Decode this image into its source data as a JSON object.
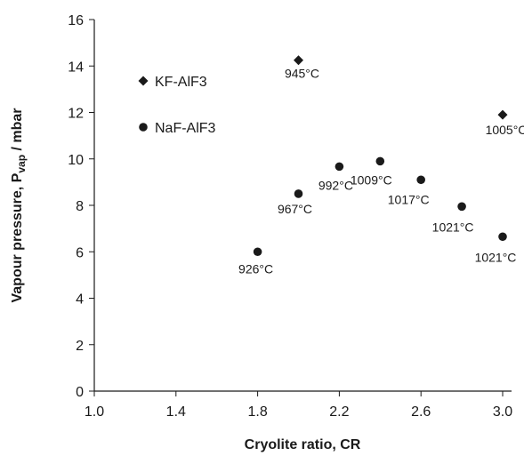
{
  "chart_data": {
    "type": "scatter",
    "title": "",
    "xlabel": "Cryolite ratio, CR",
    "ylabel": {
      "main": "Vapour pressure, P",
      "sub": "vap",
      "unit": " / mbar"
    },
    "xlim": [
      1.0,
      3.0
    ],
    "ylim": [
      0,
      16
    ],
    "xticks": [
      "1.0",
      "1.4",
      "1.8",
      "2.2",
      "2.6",
      "3.0"
    ],
    "yticks": [
      "0",
      "2",
      "4",
      "6",
      "8",
      "10",
      "12",
      "14",
      "16"
    ],
    "grid": false,
    "legend_position": "top-left",
    "series": [
      {
        "name": "KF-AlF3",
        "marker": "diamond",
        "color": "#1a1a1a",
        "points": [
          {
            "x": 2.0,
            "y": 14.25,
            "label": "945°C"
          },
          {
            "x": 3.0,
            "y": 11.9,
            "label": "1005°C"
          }
        ]
      },
      {
        "name": "NaF-AlF3",
        "marker": "circle",
        "color": "#1a1a1a",
        "points": [
          {
            "x": 1.8,
            "y": 6.0,
            "label": "926°C"
          },
          {
            "x": 2.0,
            "y": 8.5,
            "label": "967°C"
          },
          {
            "x": 2.2,
            "y": 9.67,
            "label": "992°C"
          },
          {
            "x": 2.4,
            "y": 9.9,
            "label": "1009°C"
          },
          {
            "x": 2.6,
            "y": 9.1,
            "label": "1017°C"
          },
          {
            "x": 2.8,
            "y": 7.95,
            "label": "1021°C"
          },
          {
            "x": 3.0,
            "y": 6.65,
            "label": "1021°C"
          }
        ]
      }
    ]
  }
}
